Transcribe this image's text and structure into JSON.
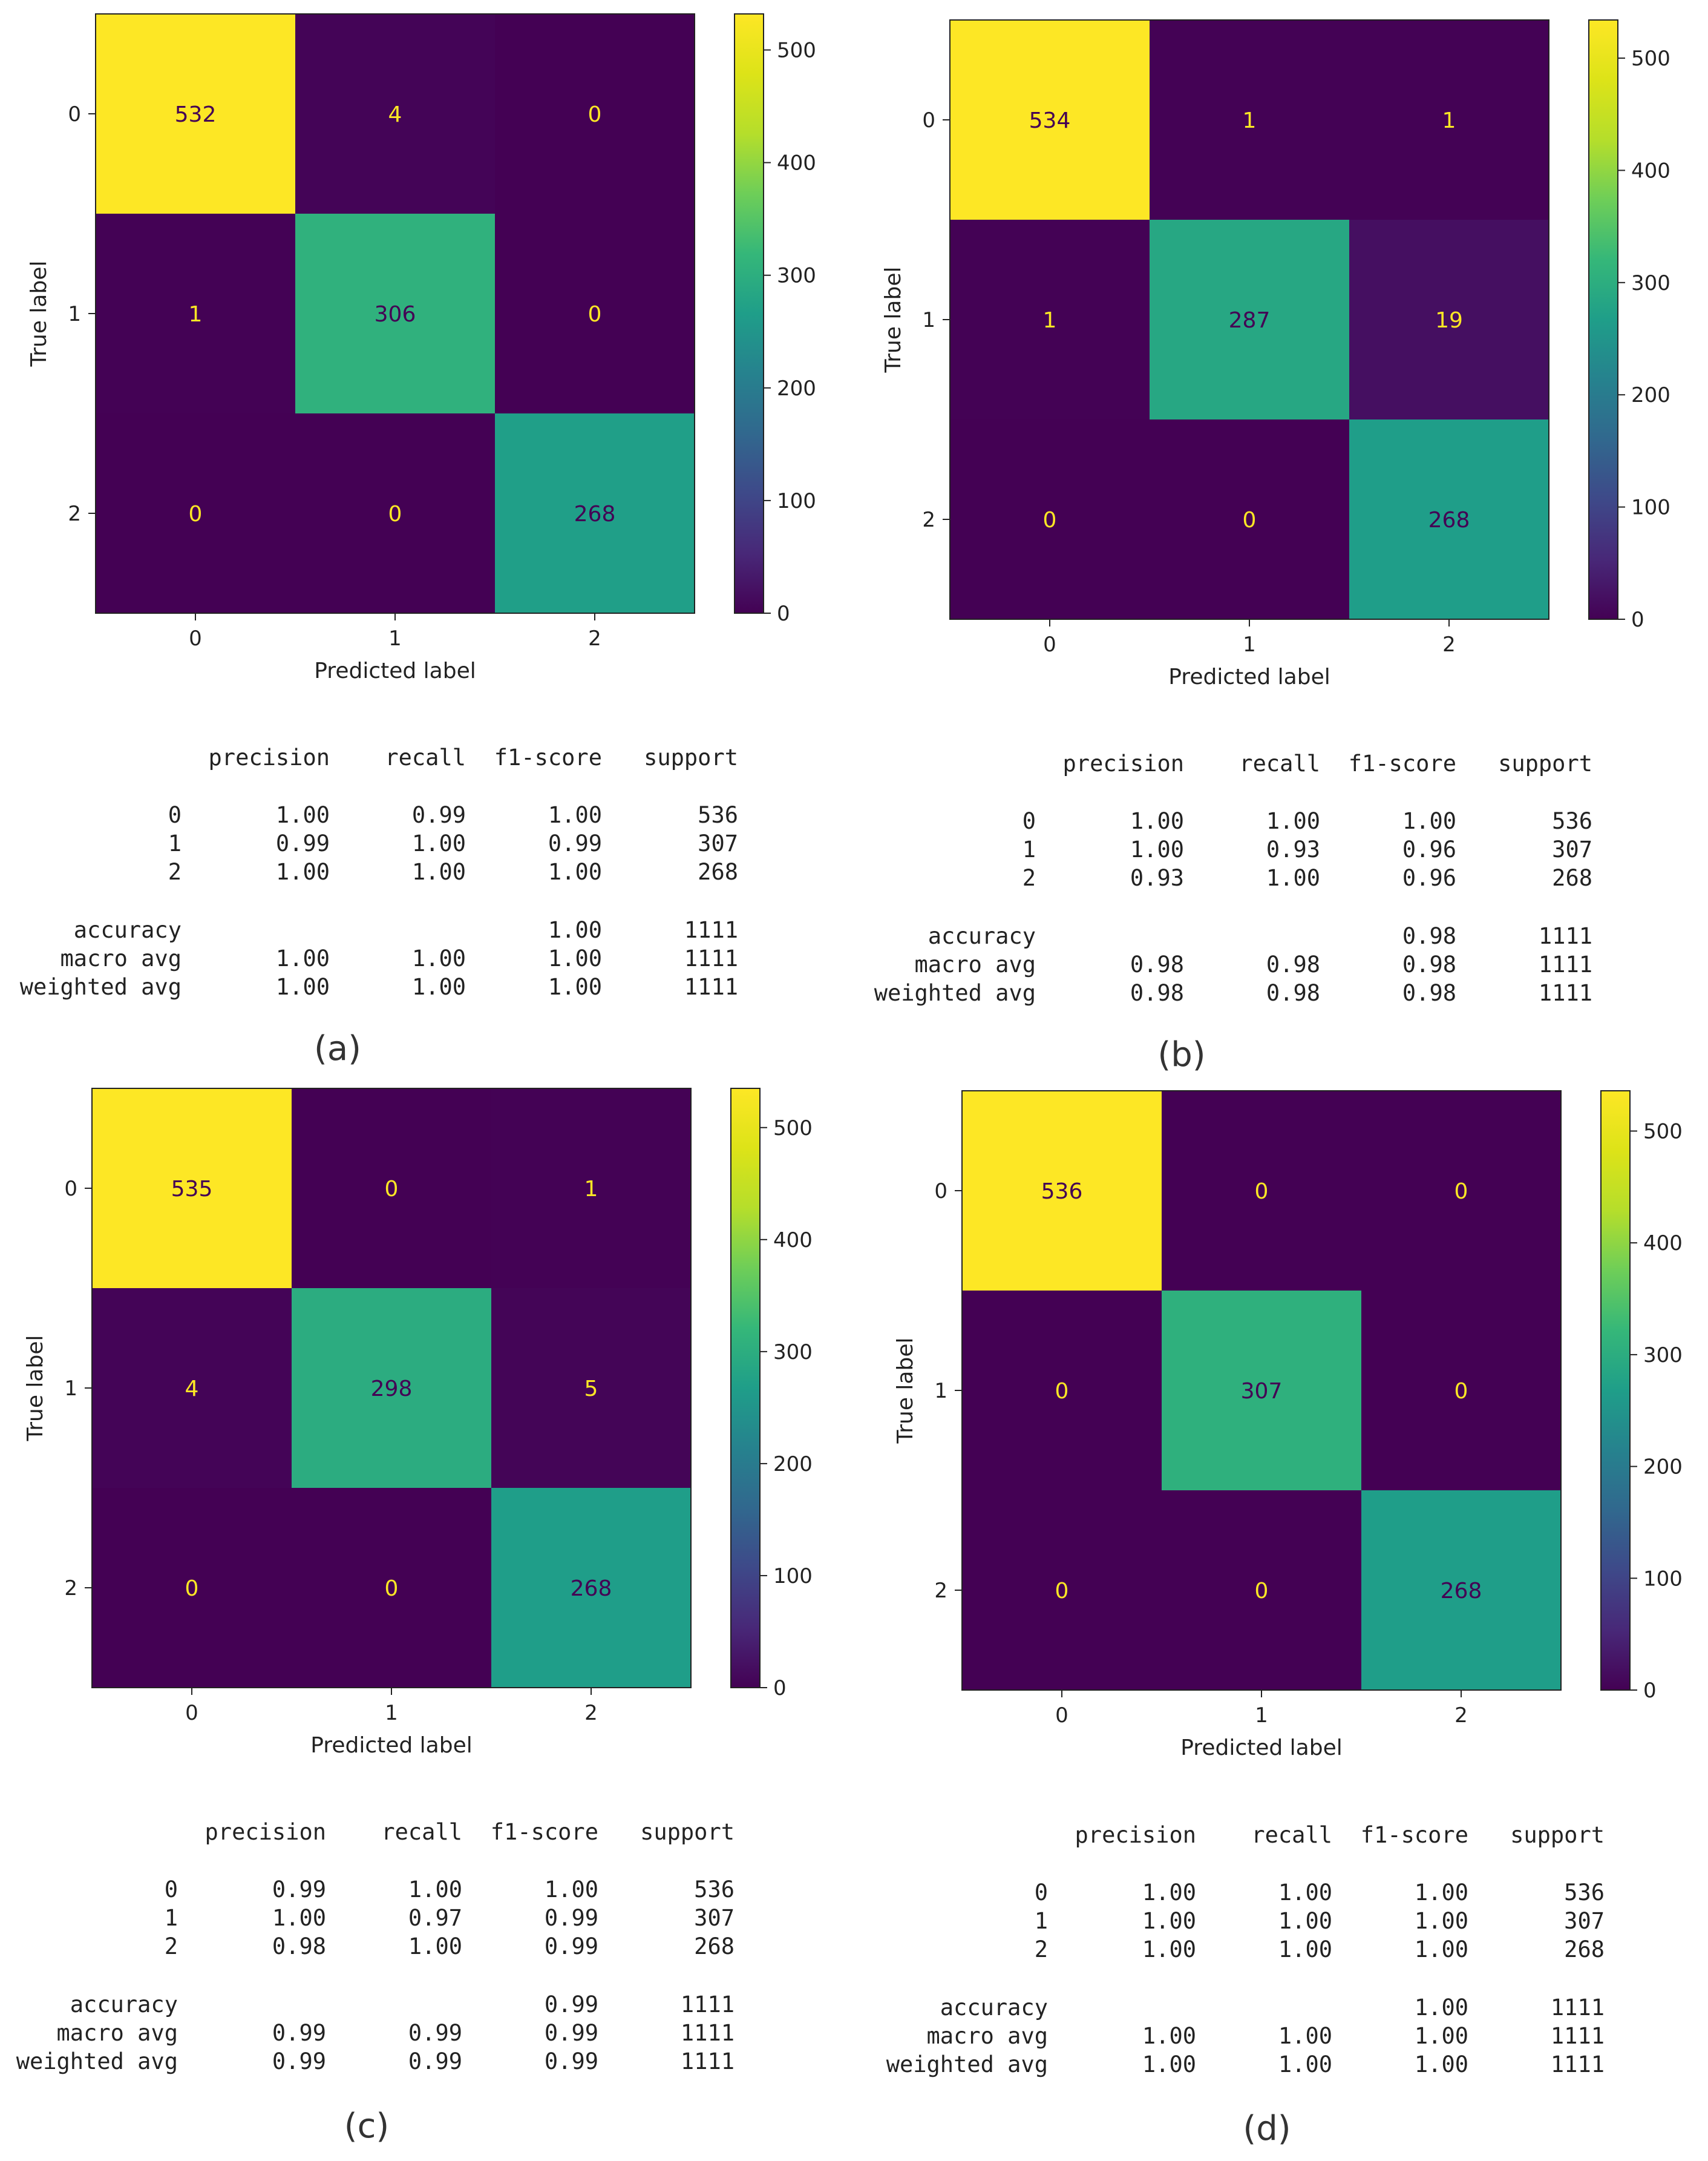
{
  "chart_data": [
    {
      "type": "heatmap",
      "panel": "(a)",
      "xlabel": "Predicted label",
      "ylabel": "True label",
      "x_ticks": [
        "0",
        "1",
        "2"
      ],
      "y_ticks": [
        "0",
        "1",
        "2"
      ],
      "matrix": [
        [
          532,
          4,
          0
        ],
        [
          1,
          306,
          0
        ],
        [
          0,
          0,
          268
        ]
      ],
      "colorbar": {
        "vmin": 0,
        "vmax": 532,
        "ticks": [
          0,
          100,
          200,
          300,
          400,
          500
        ],
        "colormap": "viridis"
      },
      "report": {
        "headers": [
          "precision",
          "recall",
          "f1-score",
          "support"
        ],
        "rows": [
          {
            "label": "0",
            "values": [
              "1.00",
              "0.99",
              "1.00",
              "536"
            ]
          },
          {
            "label": "1",
            "values": [
              "0.99",
              "1.00",
              "0.99",
              "307"
            ]
          },
          {
            "label": "2",
            "values": [
              "1.00",
              "1.00",
              "1.00",
              "268"
            ]
          }
        ],
        "summary": [
          {
            "label": "accuracy",
            "values": [
              "",
              "",
              "1.00",
              "1111"
            ]
          },
          {
            "label": "macro avg",
            "values": [
              "1.00",
              "1.00",
              "1.00",
              "1111"
            ]
          },
          {
            "label": "weighted avg",
            "values": [
              "1.00",
              "1.00",
              "1.00",
              "1111"
            ]
          }
        ]
      }
    },
    {
      "type": "heatmap",
      "panel": "(b)",
      "xlabel": "Predicted label",
      "ylabel": "True label",
      "x_ticks": [
        "0",
        "1",
        "2"
      ],
      "y_ticks": [
        "0",
        "1",
        "2"
      ],
      "matrix": [
        [
          534,
          1,
          1
        ],
        [
          1,
          287,
          19
        ],
        [
          0,
          0,
          268
        ]
      ],
      "colorbar": {
        "vmin": 0,
        "vmax": 534,
        "ticks": [
          0,
          100,
          200,
          300,
          400,
          500
        ],
        "colormap": "viridis"
      },
      "report": {
        "headers": [
          "precision",
          "recall",
          "f1-score",
          "support"
        ],
        "rows": [
          {
            "label": "0",
            "values": [
              "1.00",
              "1.00",
              "1.00",
              "536"
            ]
          },
          {
            "label": "1",
            "values": [
              "1.00",
              "0.93",
              "0.96",
              "307"
            ]
          },
          {
            "label": "2",
            "values": [
              "0.93",
              "1.00",
              "0.96",
              "268"
            ]
          }
        ],
        "summary": [
          {
            "label": "accuracy",
            "values": [
              "",
              "",
              "0.98",
              "1111"
            ]
          },
          {
            "label": "macro avg",
            "values": [
              "0.98",
              "0.98",
              "0.98",
              "1111"
            ]
          },
          {
            "label": "weighted avg",
            "values": [
              "0.98",
              "0.98",
              "0.98",
              "1111"
            ]
          }
        ]
      }
    },
    {
      "type": "heatmap",
      "panel": "(c)",
      "xlabel": "Predicted label",
      "ylabel": "True label",
      "x_ticks": [
        "0",
        "1",
        "2"
      ],
      "y_ticks": [
        "0",
        "1",
        "2"
      ],
      "matrix": [
        [
          535,
          0,
          1
        ],
        [
          4,
          298,
          5
        ],
        [
          0,
          0,
          268
        ]
      ],
      "colorbar": {
        "vmin": 0,
        "vmax": 535,
        "ticks": [
          0,
          100,
          200,
          300,
          400,
          500
        ],
        "colormap": "viridis"
      },
      "report": {
        "headers": [
          "precision",
          "recall",
          "f1-score",
          "support"
        ],
        "rows": [
          {
            "label": "0",
            "values": [
              "0.99",
              "1.00",
              "1.00",
              "536"
            ]
          },
          {
            "label": "1",
            "values": [
              "1.00",
              "0.97",
              "0.99",
              "307"
            ]
          },
          {
            "label": "2",
            "values": [
              "0.98",
              "1.00",
              "0.99",
              "268"
            ]
          }
        ],
        "summary": [
          {
            "label": "accuracy",
            "values": [
              "",
              "",
              "0.99",
              "1111"
            ]
          },
          {
            "label": "macro avg",
            "values": [
              "0.99",
              "0.99",
              "0.99",
              "1111"
            ]
          },
          {
            "label": "weighted avg",
            "values": [
              "0.99",
              "0.99",
              "0.99",
              "1111"
            ]
          }
        ]
      }
    },
    {
      "type": "heatmap",
      "panel": "(d)",
      "xlabel": "Predicted label",
      "ylabel": "True label",
      "x_ticks": [
        "0",
        "1",
        "2"
      ],
      "y_ticks": [
        "0",
        "1",
        "2"
      ],
      "matrix": [
        [
          536,
          0,
          0
        ],
        [
          0,
          307,
          0
        ],
        [
          0,
          0,
          268
        ]
      ],
      "colorbar": {
        "vmin": 0,
        "vmax": 536,
        "ticks": [
          0,
          100,
          200,
          300,
          400,
          500
        ],
        "colormap": "viridis"
      },
      "report": {
        "headers": [
          "precision",
          "recall",
          "f1-score",
          "support"
        ],
        "rows": [
          {
            "label": "0",
            "values": [
              "1.00",
              "1.00",
              "1.00",
              "536"
            ]
          },
          {
            "label": "1",
            "values": [
              "1.00",
              "1.00",
              "1.00",
              "307"
            ]
          },
          {
            "label": "2",
            "values": [
              "1.00",
              "1.00",
              "1.00",
              "268"
            ]
          }
        ],
        "summary": [
          {
            "label": "accuracy",
            "values": [
              "",
              "",
              "1.00",
              "1111"
            ]
          },
          {
            "label": "macro avg",
            "values": [
              "1.00",
              "1.00",
              "1.00",
              "1111"
            ]
          },
          {
            "label": "weighted avg",
            "values": [
              "1.00",
              "1.00",
              "1.00",
              "1111"
            ]
          }
        ]
      }
    }
  ]
}
